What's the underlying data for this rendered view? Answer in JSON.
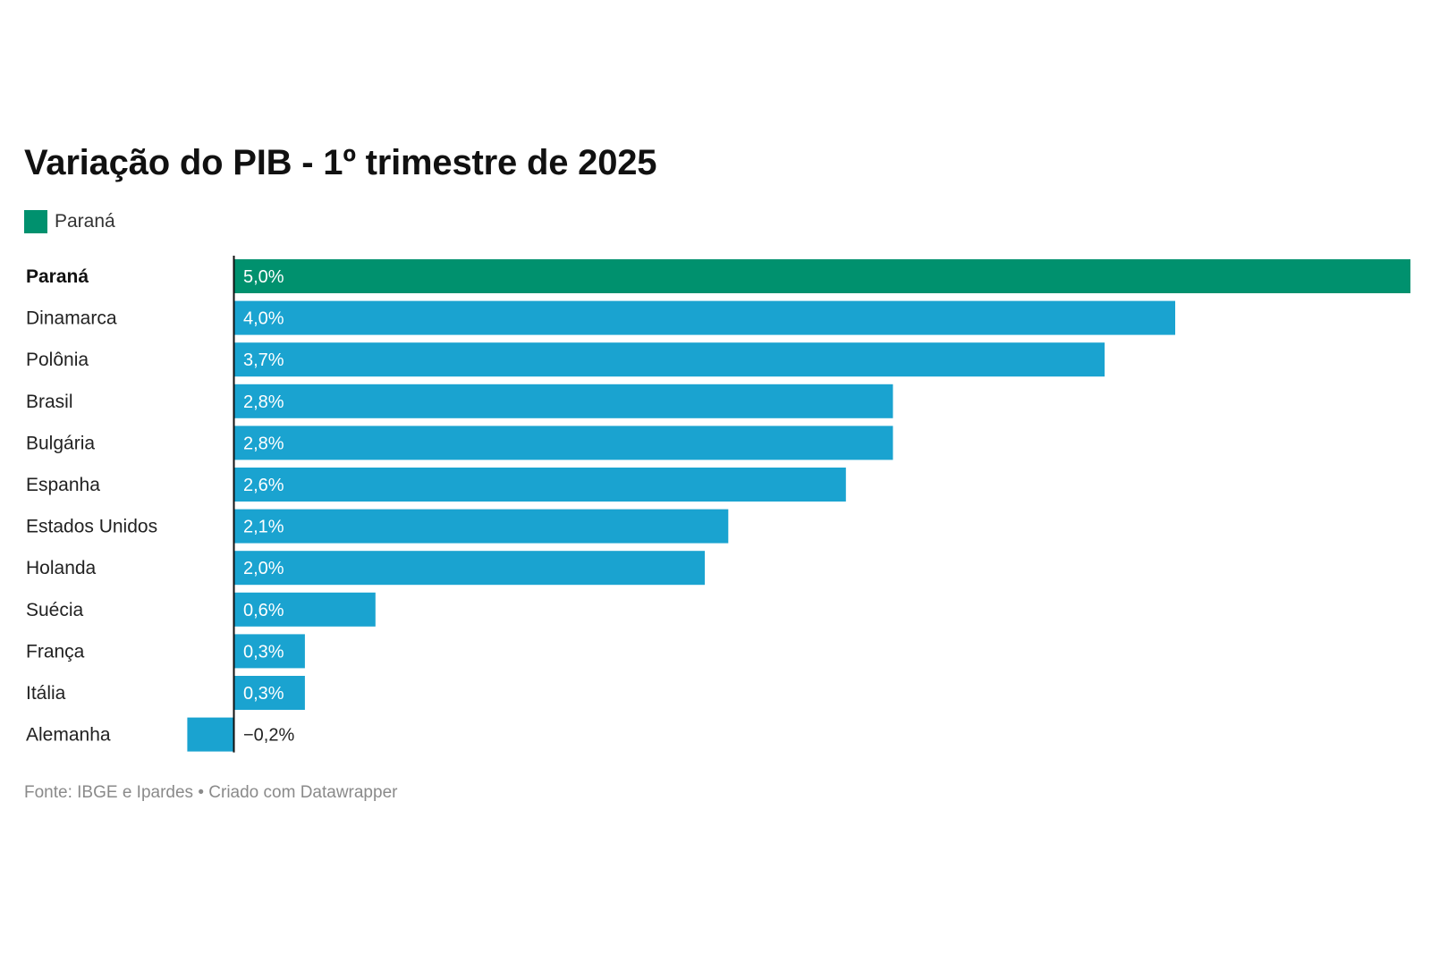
{
  "title": "Variação do PIB - 1º trimestre de 2025",
  "legend": {
    "label": "Paraná",
    "color": "#00916e"
  },
  "colors": {
    "highlight": "#00916e",
    "default": "#1aa3d0",
    "baseline": "#111111"
  },
  "chart_data": {
    "type": "bar",
    "orientation": "horizontal",
    "title": "Variação do PIB - 1º trimestre de 2025",
    "categories": [
      "Paraná",
      "Dinamarca",
      "Polônia",
      "Brasil",
      "Bulgária",
      "Espanha",
      "Estados Unidos",
      "Holanda",
      "Suécia",
      "França",
      "Itália",
      "Alemanha"
    ],
    "values": [
      5.0,
      4.0,
      3.7,
      2.8,
      2.8,
      2.6,
      2.1,
      2.0,
      0.6,
      0.3,
      0.3,
      -0.2
    ],
    "value_labels": [
      "5,0%",
      "4,0%",
      "3,7%",
      "2,8%",
      "2,8%",
      "2,6%",
      "2,1%",
      "2,0%",
      "0,6%",
      "0,3%",
      "0,3%",
      "−0,2%"
    ],
    "highlighted": [
      "Paraná"
    ],
    "unit": "%",
    "xlim": [
      -0.2,
      5.0
    ],
    "grid": false,
    "legend_position": "top-left"
  },
  "footer": {
    "source": "Fonte: IBGE e Ipardes",
    "separator": "•",
    "credit": "Criado com Datawrapper"
  }
}
